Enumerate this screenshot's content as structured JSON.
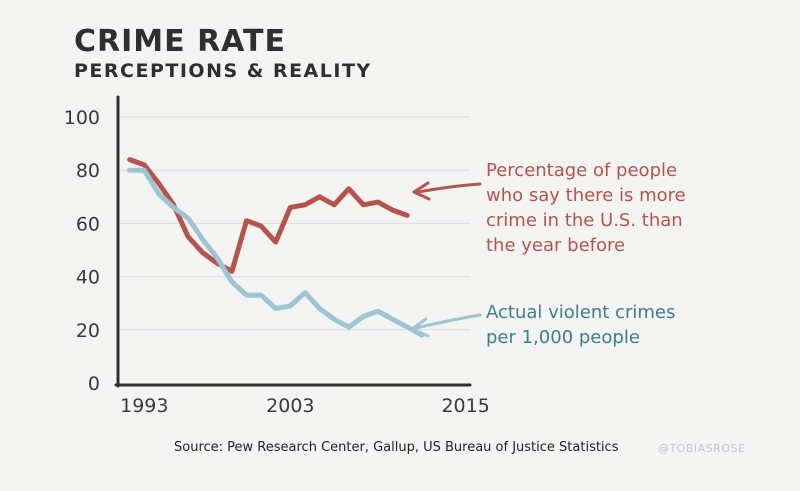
{
  "title": "CRIME RATE",
  "subtitle": "PERCEPTIONS & REALITY",
  "source": "Source: Pew Research Center, Gallup, US Bureau of Justice Statistics",
  "credit": "@TOBIASROSE",
  "colors": {
    "perception": "#b5544d",
    "actual": "#9ec5d2",
    "axis": "#2f2f2f",
    "grid": "#dcdcdc"
  },
  "chart_data": {
    "type": "line",
    "ylim": [
      0,
      100
    ],
    "yticks": [
      "0",
      "20",
      "40",
      "60",
      "80",
      "100"
    ],
    "xlim": [
      1993,
      2015
    ],
    "xticks": [
      "1993",
      "2003",
      "2015"
    ],
    "grid": true,
    "series": [
      {
        "name": "Percentage of people who say there is more crime in the U.S. than the year before",
        "x": [
          1992,
          1993,
          1994,
          1995,
          1996,
          1997,
          1998,
          1999,
          2000,
          2001,
          2002,
          2003,
          2004,
          2005,
          2006,
          2007,
          2008,
          2009,
          2010,
          2011
        ],
        "values": [
          84,
          82,
          75,
          67,
          55,
          49,
          45,
          42,
          61,
          59,
          53,
          66,
          67,
          70,
          67,
          73,
          67,
          68,
          65,
          63
        ]
      },
      {
        "name": "Actual violent crimes per 1,000 people",
        "x": [
          1992,
          1993,
          1994,
          1995,
          1996,
          1997,
          1998,
          1999,
          2000,
          2001,
          2002,
          2003,
          2004,
          2005,
          2006,
          2007,
          2008,
          2009,
          2010,
          2011,
          2012
        ],
        "values": [
          80,
          80,
          71,
          66,
          62,
          54,
          47,
          38,
          33,
          33,
          28,
          29,
          34,
          28,
          24,
          21,
          25,
          27,
          24,
          21,
          18
        ]
      }
    ],
    "annotations": [
      {
        "text": "Percentage of people\nwho say there is more\ncrime in the U.S. than\nthe year before",
        "series": 0
      },
      {
        "text": "Actual violent crimes\nper 1,000 people",
        "series": 1
      }
    ]
  }
}
